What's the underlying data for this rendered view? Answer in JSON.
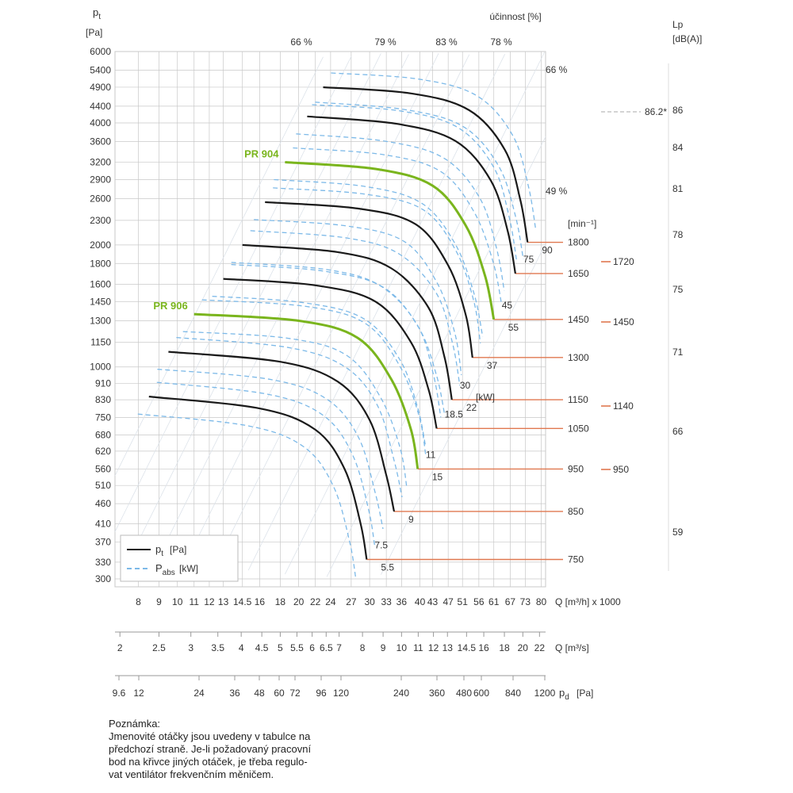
{
  "chart_data": {
    "type": "line",
    "pt_axis": {
      "label_main": "p",
      "label_sub": "t",
      "unit": "[Pa]",
      "ticks": [
        300,
        330,
        370,
        410,
        460,
        510,
        560,
        620,
        680,
        750,
        830,
        910,
        1000,
        1150,
        1300,
        1450,
        1600,
        1800,
        2000,
        2300,
        2600,
        2900,
        3200,
        3600,
        4000,
        4400,
        4900,
        5400,
        6000
      ]
    },
    "q_axis": {
      "label": "Q [m³/h] x 1000",
      "ticks": [
        8,
        9,
        10,
        11,
        12,
        13,
        14.5,
        16,
        18,
        20,
        22,
        24,
        27,
        30,
        33,
        36,
        40,
        43,
        47,
        51,
        56,
        61,
        67,
        73,
        80
      ]
    },
    "q_s_axis": {
      "label": "Q [m³/s]",
      "ticks": [
        "2",
        "2.5",
        "3",
        "3.5",
        "4",
        "4.5",
        "5",
        "5.5",
        "6",
        "6.5",
        "7",
        "8",
        "9",
        "10",
        "11",
        "12",
        "13",
        "14.5",
        "16",
        "18",
        "20",
        "22"
      ]
    },
    "pd_axis": {
      "label_main": "p",
      "label_sub": "d",
      "unit": "[Pa]",
      "ticks": [
        "9.6",
        "12",
        "24",
        "36",
        "48",
        "60",
        "72",
        "96",
        "120",
        "240",
        "360",
        "480",
        "600",
        "840",
        "1200"
      ]
    },
    "lp_axis": {
      "label": "Lp",
      "unit": "[dB(A)]",
      "ticks": [
        "86",
        "84",
        "81",
        "78",
        "75",
        "71",
        "66",
        "59"
      ],
      "extra_mark": "86.2*"
    },
    "efficiency": {
      "title": "účinnost [%]",
      "labels": [
        "66 %",
        "79 %",
        "83 %",
        "78 %",
        "66 %",
        "49 %"
      ]
    },
    "power_labels": [
      "5.5",
      "7.5",
      "9",
      "11",
      "15",
      "18.5",
      "22",
      "30",
      "37",
      "45",
      "55",
      "75",
      "90"
    ],
    "power_unit": "[kW]",
    "speed_unit": "[min⁻¹]",
    "speeds": [
      "750",
      "850",
      "950",
      "1050",
      "1150",
      "1300",
      "1450",
      "1650",
      "1800"
    ],
    "speeds_secondary": [
      "950",
      "1140",
      "1450",
      "1720"
    ],
    "series": [
      {
        "rpm": 750,
        "color": "black",
        "points": [
          [
            8.5,
            845
          ],
          [
            16,
            790
          ],
          [
            22,
            700
          ],
          [
            26,
            560
          ],
          [
            28.5,
            410
          ],
          [
            29.5,
            335
          ]
        ]
      },
      {
        "rpm": 850,
        "color": "black",
        "points": [
          [
            9.5,
            1090
          ],
          [
            18,
            1030
          ],
          [
            25,
            920
          ],
          [
            30,
            740
          ],
          [
            33,
            540
          ],
          [
            34.5,
            440
          ]
        ]
      },
      {
        "name": "PR 906",
        "rpm": 950,
        "color": "green",
        "points": [
          [
            11,
            1350
          ],
          [
            20,
            1300
          ],
          [
            28,
            1180
          ],
          [
            34,
            930
          ],
          [
            38,
            700
          ],
          [
            39.5,
            560
          ]
        ]
      },
      {
        "rpm": 1050,
        "color": "black",
        "points": [
          [
            13,
            1650
          ],
          [
            22,
            1590
          ],
          [
            31,
            1450
          ],
          [
            38,
            1150
          ],
          [
            42,
            880
          ],
          [
            44,
            705
          ]
        ]
      },
      {
        "rpm": 1150,
        "color": "black",
        "points": [
          [
            14.5,
            2000
          ],
          [
            25,
            1920
          ],
          [
            34,
            1750
          ],
          [
            42,
            1400
          ],
          [
            46,
            1060
          ],
          [
            48,
            830
          ]
        ]
      },
      {
        "rpm": 1300,
        "color": "black",
        "points": [
          [
            16.5,
            2550
          ],
          [
            28,
            2460
          ],
          [
            39,
            2250
          ],
          [
            47,
            1780
          ],
          [
            52,
            1340
          ],
          [
            54,
            1055
          ]
        ]
      },
      {
        "name": "PR 904",
        "rpm": 1450,
        "color": "green",
        "points": [
          [
            18.5,
            3200
          ],
          [
            31,
            3080
          ],
          [
            43,
            2800
          ],
          [
            52,
            2230
          ],
          [
            58,
            1680
          ],
          [
            61,
            1310
          ]
        ]
      },
      {
        "rpm": 1650,
        "color": "black",
        "points": [
          [
            21,
            4150
          ],
          [
            35,
            3980
          ],
          [
            49,
            3610
          ],
          [
            60,
            2880
          ],
          [
            66,
            2170
          ],
          [
            69,
            1700
          ]
        ]
      },
      {
        "rpm": 1800,
        "color": "black",
        "points": [
          [
            23,
            4900
          ],
          [
            38,
            4730
          ],
          [
            53,
            4300
          ],
          [
            65,
            3430
          ],
          [
            71,
            2580
          ],
          [
            74,
            2030
          ]
        ]
      }
    ],
    "legend": [
      {
        "symbol": "solid",
        "main": "p",
        "sub": "t",
        "unit": "[Pa]"
      },
      {
        "symbol": "dashed",
        "main": "P",
        "sub": "abs",
        "unit": "[kW]"
      }
    ],
    "legend_position": "bottom-left",
    "grid": true,
    "colors": {
      "curve": "#1a1a1a",
      "highlight": "#7ab51d",
      "power": "#7cb9e8",
      "speed_marker": "#e07850",
      "grid": "#c8c8c8"
    }
  },
  "note": {
    "title": "Poznámka:",
    "lines": [
      "Jmenovité otáčky jsou uvedeny v tabulce na",
      "předchozí straně. Je-li požadovaný pracovní",
      "bod na křivce jiných otáček, je třeba regulo-",
      "vat ventilátor frekvenčním měničem."
    ]
  }
}
